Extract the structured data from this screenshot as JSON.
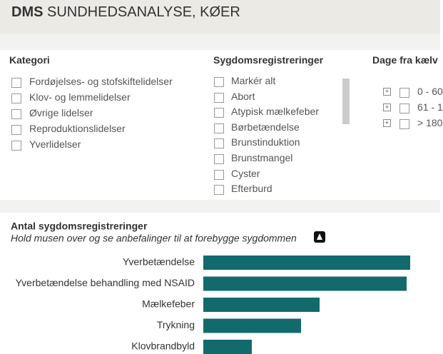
{
  "header": {
    "brand": "DMS",
    "title": "SUNDHEDSANALYSE, KØER"
  },
  "filters": {
    "kategori": {
      "title": "Kategori",
      "items": [
        "Fordøjelses- og stofskiftelidelser",
        "Klov- og lemmelidelser",
        "Øvrige lidelser",
        "Reproduktionslidelser",
        "Yverlidelser"
      ]
    },
    "sygdom": {
      "title": "Sygdomsregistreringer",
      "items": [
        "Markér alt",
        "Abort",
        "Atypisk mælkefeber",
        "Børbetændelse",
        "Brunstinduktion",
        "Brunstmangel",
        "Cyster",
        "Efterburd"
      ]
    },
    "dage": {
      "title": "Dage fra kælv",
      "items": [
        "0 - 60",
        "61 - 1",
        "> 180"
      ]
    }
  },
  "chart_data": {
    "type": "bar",
    "orientation": "horizontal",
    "title": "Antal sygdomsregistreringer",
    "subtitle": "Hold musen over og se anbefalinger til at forebygge sygdommen",
    "categories": [
      "Yverbetændelse",
      "Yverbetændelse behandling med NSAID",
      "Mælkefeber",
      "Trykning",
      "Klovbrandbyld"
    ],
    "values": [
      290,
      285,
      163,
      137,
      68
    ],
    "color": "#126a6c"
  }
}
